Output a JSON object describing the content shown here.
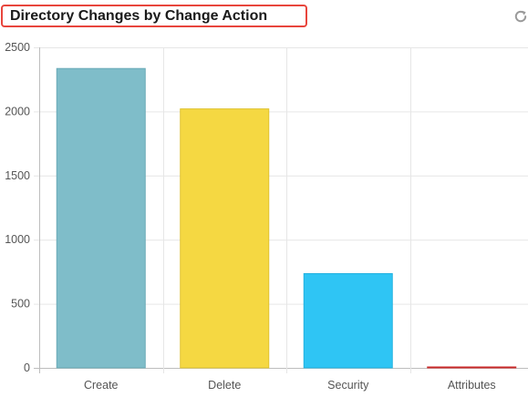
{
  "widget": {
    "title": "Directory Changes by Change Action",
    "refresh_icon": "refresh-icon"
  },
  "chart_data": {
    "type": "bar",
    "categories": [
      "Create",
      "Delete",
      "Security",
      "Attributes"
    ],
    "values": [
      2335,
      2020,
      735,
      5
    ],
    "colors": [
      "#7fbdc9",
      "#f5d842",
      "#2fc5f4",
      "#e03c3c"
    ],
    "border_colors": [
      "#6aaab7",
      "#e0c330",
      "#22b2e0",
      "#c92a2a"
    ],
    "ylim": [
      0,
      2500
    ],
    "yticks": [
      0,
      500,
      1000,
      1500,
      2000,
      2500
    ],
    "grid": true,
    "title": "",
    "xlabel": "",
    "ylabel": ""
  }
}
